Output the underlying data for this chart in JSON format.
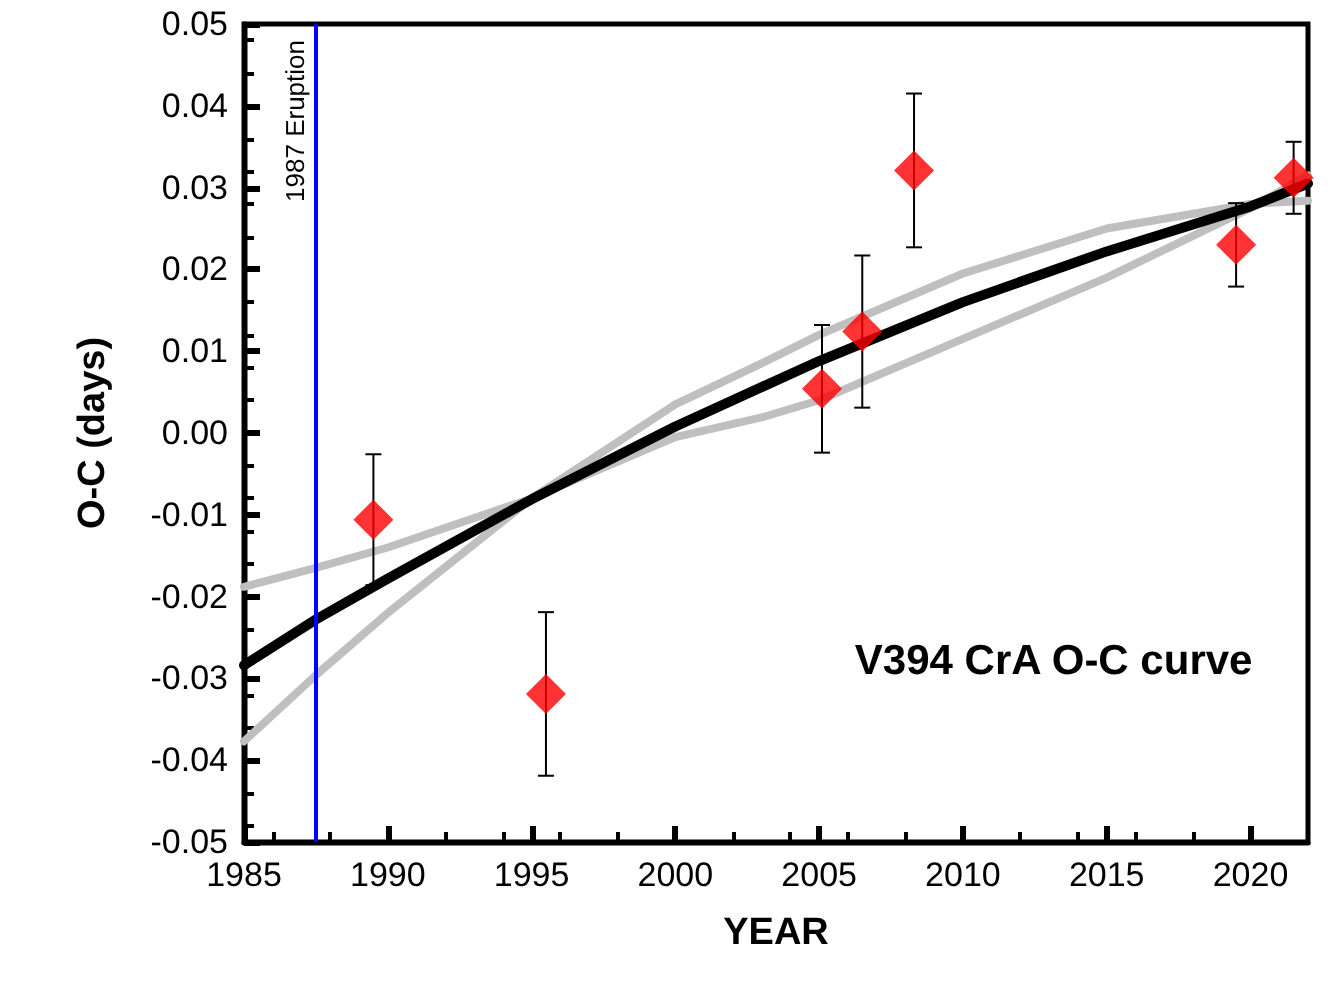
{
  "chart_data": {
    "type": "scatter",
    "xlabel": "YEAR",
    "ylabel": "O-C (days)",
    "annotations": [
      "V394 CrA O-C curve"
    ],
    "xlim": [
      1985,
      2022
    ],
    "xticks": [
      1985,
      1990,
      1995,
      2000,
      2005,
      2010,
      2015,
      2020
    ],
    "ylim": [
      -0.05,
      0.05
    ],
    "yticks": [
      {
        "value": -0.05,
        "label": "-0.05"
      },
      {
        "value": -0.04,
        "label": "-0.04"
      },
      {
        "value": -0.03,
        "label": "-0.03"
      },
      {
        "value": -0.02,
        "label": "-0.02"
      },
      {
        "value": -0.01,
        "label": "-0.01"
      },
      {
        "value": 0,
        "label": "0.00"
      },
      {
        "value": 0.01,
        "label": "0.01"
      },
      {
        "value": 0.02,
        "label": "0.02"
      },
      {
        "value": 0.03,
        "label": "0.03"
      },
      {
        "value": 0.04,
        "label": "0.04"
      },
      {
        "value": 0.05,
        "label": "0.05"
      }
    ],
    "grid": false,
    "ref_lines": [
      {
        "axis": "x",
        "value": 1987.5,
        "label": "1987 Eruption",
        "color": "#0000ff"
      }
    ],
    "series": [
      {
        "type": "line",
        "color": "#bfbfbf",
        "marker": "none",
        "x": [
          1985,
          1987.5,
          1990,
          1995,
          2000,
          2003,
          2005,
          2010,
          2015,
          2020,
          2022
        ],
        "values": [
          -0.0377,
          -0.0296,
          -0.022,
          -0.008,
          0.0035,
          0.0085,
          0.012,
          0.0195,
          0.025,
          0.028,
          0.0284
        ]
      },
      {
        "type": "line",
        "color": "#bfbfbf",
        "marker": "none",
        "x": [
          1985,
          1987.5,
          1990,
          1995,
          2000,
          2003,
          2005,
          2010,
          2015,
          2020,
          2022
        ],
        "values": [
          -0.0188,
          -0.0165,
          -0.014,
          -0.008,
          -0.0005,
          0.0019,
          0.004,
          0.0115,
          0.019,
          0.0275,
          0.0315
        ]
      },
      {
        "type": "line",
        "color": "#000000",
        "marker": "none",
        "x": [
          1985,
          1987.5,
          1990,
          1995,
          2000,
          2005,
          2010,
          2015,
          2020,
          2022
        ],
        "values": [
          -0.0284,
          -0.0228,
          -0.0178,
          -0.0081,
          0.0008,
          0.0088,
          0.016,
          0.0222,
          0.0277,
          0.0305
        ]
      },
      {
        "color": "#ff0000",
        "marker": "diamond",
        "x": [
          1989.5,
          1995.5,
          2005.1,
          2006.5,
          2008.3,
          2019.5,
          2021.5
        ],
        "values": [
          -0.0106,
          -0.0319,
          0.0054,
          0.0124,
          0.0321,
          0.023,
          0.0312
        ],
        "errors": [
          0.008,
          0.01,
          0.0078,
          0.0093,
          0.0094,
          0.0051,
          0.0044
        ]
      }
    ]
  }
}
